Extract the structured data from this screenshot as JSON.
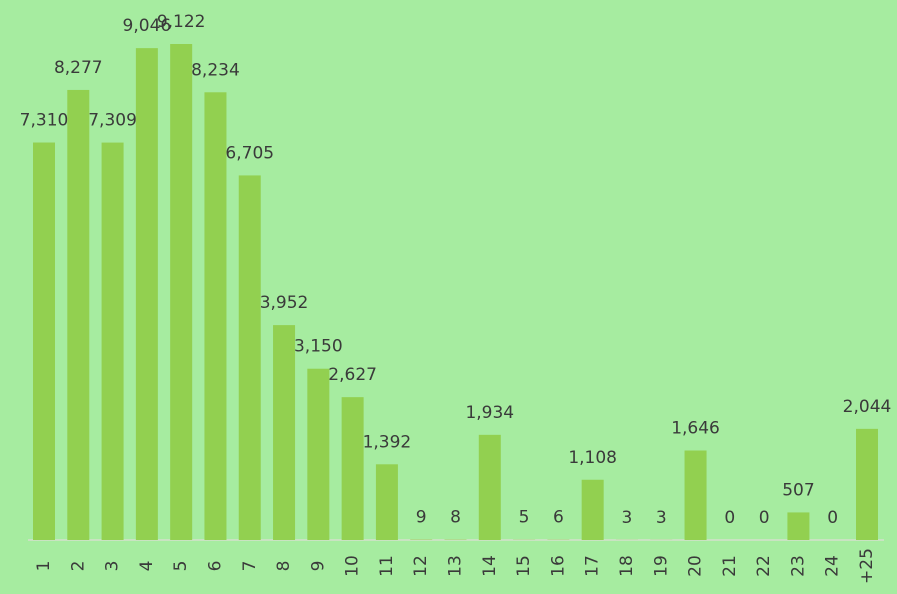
{
  "chart_data": {
    "type": "bar",
    "categories": [
      "1",
      "2",
      "3",
      "4",
      "5",
      "6",
      "7",
      "8",
      "9",
      "10",
      "11",
      "12",
      "13",
      "14",
      "15",
      "16",
      "17",
      "18",
      "19",
      "20",
      "21",
      "22",
      "23",
      "24",
      "+25"
    ],
    "values": [
      7310,
      8277,
      7309,
      9046,
      9122,
      8234,
      6705,
      3952,
      3150,
      2627,
      1392,
      9,
      8,
      1934,
      5,
      6,
      1108,
      3,
      3,
      1646,
      0,
      0,
      507,
      0,
      2044
    ],
    "value_labels": [
      "7,310",
      "8,277",
      "7,309",
      "9,046",
      "9,122",
      "8,234",
      "6,705",
      "3,952",
      "3,150",
      "2,627",
      "1,392",
      "9",
      "8",
      "1,934",
      "5",
      "6",
      "1,108",
      "3",
      "3",
      "1,646",
      "0",
      "0",
      "507",
      "0",
      "2,044"
    ],
    "color": "#92d050"
  }
}
